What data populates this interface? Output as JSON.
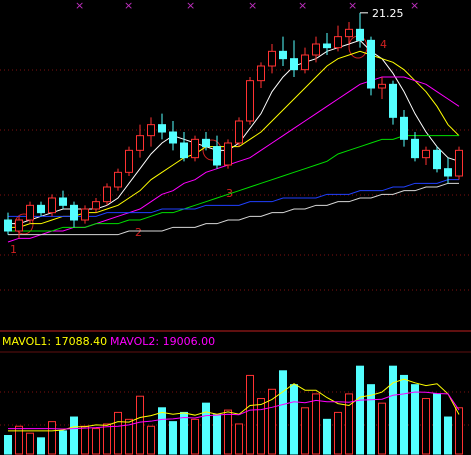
{
  "chart_data": [
    {
      "type": "candlestick",
      "open": [
        15.6,
        15.3,
        15.6,
        16.0,
        15.8,
        16.2,
        16.0,
        15.6,
        15.9,
        16.1,
        16.5,
        16.9,
        17.5,
        17.9,
        18.2,
        18.0,
        17.7,
        17.3,
        17.8,
        17.6,
        17.1,
        17.7,
        18.3,
        19.4,
        19.8,
        20.2,
        20.0,
        19.7,
        20.1,
        20.4,
        20.3,
        20.6,
        20.8,
        20.5,
        19.2,
        19.3,
        18.4,
        17.8,
        17.3,
        17.5,
        17.0,
        16.8
      ],
      "high": [
        15.8,
        15.7,
        16.1,
        16.1,
        16.3,
        16.4,
        16.1,
        16.0,
        16.2,
        16.6,
        17.0,
        17.6,
        18.2,
        18.4,
        18.5,
        18.3,
        18.0,
        17.9,
        18.0,
        17.9,
        17.8,
        18.4,
        19.5,
        19.9,
        20.4,
        20.6,
        20.5,
        20.3,
        20.6,
        20.7,
        20.9,
        21.0,
        21.25,
        20.6,
        19.5,
        19.4,
        18.6,
        18.0,
        17.6,
        17.6,
        17.3,
        17.6
      ],
      "low": [
        15.2,
        15.1,
        15.5,
        15.7,
        15.7,
        15.9,
        15.4,
        15.5,
        15.8,
        16.0,
        16.4,
        16.8,
        17.3,
        17.6,
        17.8,
        17.5,
        17.2,
        17.2,
        17.5,
        17.0,
        17.0,
        17.6,
        18.2,
        19.2,
        19.6,
        19.8,
        19.5,
        19.6,
        19.9,
        20.1,
        20.2,
        20.4,
        20.3,
        19.0,
        18.9,
        18.2,
        17.6,
        17.2,
        17.1,
        16.9,
        16.6,
        16.7
      ],
      "close": [
        15.3,
        15.6,
        16.0,
        15.8,
        16.2,
        16.0,
        15.6,
        15.9,
        16.1,
        16.5,
        16.9,
        17.5,
        17.9,
        18.2,
        18.0,
        17.7,
        17.3,
        17.8,
        17.6,
        17.1,
        17.7,
        18.3,
        19.4,
        19.8,
        20.2,
        20.0,
        19.7,
        20.1,
        20.4,
        20.3,
        20.6,
        20.8,
        20.5,
        19.2,
        19.3,
        18.4,
        17.8,
        17.3,
        17.5,
        17.0,
        16.8,
        17.5
      ],
      "ylim": [
        12.6,
        21.6
      ],
      "up_color": "#ff3232",
      "down_color": "#54ffff",
      "series": [
        {
          "color": "#ffffff",
          "values": [
            15.5,
            15.5,
            15.6,
            15.7,
            15.8,
            15.9,
            15.9,
            15.9,
            15.9,
            16.0,
            16.2,
            16.6,
            17.0,
            17.4,
            17.7,
            17.9,
            17.8,
            17.7,
            17.6,
            17.5,
            17.5,
            17.7,
            18.1,
            18.5,
            19.1,
            19.5,
            19.8,
            19.9,
            20.0,
            20.2,
            20.3,
            20.4,
            20.5,
            20.2,
            20.0,
            19.6,
            19.1,
            18.5,
            18.0,
            17.6,
            17.3,
            17.2
          ]
        },
        {
          "color": "#ffff00",
          "values": [
            15.4,
            15.4,
            15.5,
            15.5,
            15.6,
            15.7,
            15.7,
            15.8,
            15.8,
            15.9,
            16.0,
            16.2,
            16.4,
            16.7,
            16.9,
            17.1,
            17.3,
            17.4,
            17.6,
            17.6,
            17.6,
            17.6,
            17.8,
            18.0,
            18.3,
            18.6,
            18.9,
            19.2,
            19.5,
            19.8,
            20.0,
            20.1,
            20.2,
            20.1,
            20.0,
            19.9,
            19.7,
            19.4,
            19.1,
            18.7,
            18.2,
            17.9
          ]
        },
        {
          "color": "#ff00ff",
          "values": [
            15.0,
            15.1,
            15.1,
            15.2,
            15.3,
            15.3,
            15.4,
            15.4,
            15.5,
            15.6,
            15.7,
            15.8,
            15.9,
            16.1,
            16.3,
            16.4,
            16.6,
            16.7,
            16.9,
            17.0,
            17.1,
            17.2,
            17.3,
            17.5,
            17.7,
            17.9,
            18.1,
            18.3,
            18.5,
            18.7,
            18.9,
            19.1,
            19.3,
            19.4,
            19.5,
            19.5,
            19.5,
            19.4,
            19.3,
            19.1,
            18.9,
            18.7
          ]
        },
        {
          "color": "#00e000",
          "values": [
            15.3,
            15.3,
            15.3,
            15.3,
            15.3,
            15.4,
            15.4,
            15.4,
            15.5,
            15.5,
            15.5,
            15.6,
            15.6,
            15.7,
            15.8,
            15.8,
            15.9,
            16.0,
            16.1,
            16.2,
            16.3,
            16.4,
            16.5,
            16.6,
            16.7,
            16.8,
            16.9,
            17.0,
            17.1,
            17.2,
            17.4,
            17.5,
            17.6,
            17.7,
            17.8,
            17.8,
            17.9,
            17.9,
            17.9,
            17.9,
            17.9,
            17.9
          ]
        },
        {
          "color": "#2040ff",
          "values": [
            15.7,
            15.7,
            15.7,
            15.7,
            15.7,
            15.7,
            15.7,
            15.7,
            15.7,
            15.8,
            15.8,
            15.8,
            15.8,
            15.8,
            15.9,
            15.9,
            15.9,
            15.9,
            16.0,
            16.0,
            16.0,
            16.0,
            16.1,
            16.1,
            16.1,
            16.2,
            16.2,
            16.2,
            16.2,
            16.3,
            16.3,
            16.3,
            16.4,
            16.4,
            16.4,
            16.5,
            16.5,
            16.6,
            16.6,
            16.6,
            16.7,
            16.7
          ]
        },
        {
          "color": "#d8d8d8",
          "values": [
            15.2,
            15.2,
            15.2,
            15.2,
            15.2,
            15.2,
            15.2,
            15.2,
            15.2,
            15.2,
            15.2,
            15.3,
            15.3,
            15.3,
            15.3,
            15.4,
            15.4,
            15.4,
            15.5,
            15.5,
            15.6,
            15.6,
            15.7,
            15.7,
            15.8,
            15.8,
            15.9,
            15.9,
            16.0,
            16.0,
            16.1,
            16.1,
            16.2,
            16.2,
            16.3,
            16.3,
            16.4,
            16.4,
            16.5,
            16.5,
            16.6,
            16.6
          ]
        }
      ],
      "annotations": [
        "1",
        "2",
        "3",
        "4"
      ]
    },
    {
      "type": "volume",
      "values": [
        8000,
        12000,
        9000,
        7000,
        14000,
        10000,
        16000,
        12000,
        11000,
        13000,
        18000,
        15000,
        25000,
        12000,
        20000,
        14000,
        18000,
        15000,
        22000,
        17000,
        19000,
        13000,
        34000,
        24000,
        28000,
        36000,
        30000,
        20000,
        26000,
        15000,
        18000,
        26000,
        38000,
        30000,
        22000,
        38000,
        34000,
        30000,
        24000,
        26000,
        16000,
        20000
      ],
      "ylim": [
        0,
        45000
      ],
      "series": [
        {
          "name": "MAVOL1: 17088.40",
          "color": "#ffff00",
          "values": [
            10000,
            10000,
            10000,
            10000,
            10000,
            10400,
            11800,
            11800,
            12600,
            12400,
            14000,
            13800,
            15800,
            16600,
            18000,
            17200,
            17800,
            16800,
            18200,
            17200,
            18200,
            17200,
            21000,
            21400,
            23600,
            27000,
            30400,
            27600,
            27600,
            24400,
            21800,
            21000,
            24600,
            25400,
            26800,
            30800,
            32400,
            30800,
            29600,
            30400,
            26000,
            17088.4
          ]
        },
        {
          "name": "MAVOL2: 19006.00",
          "color": "#ff00ff",
          "values": [
            11000,
            11000,
            11000,
            11000,
            11000,
            10800,
            11000,
            11200,
            11400,
            11800,
            12000,
            12600,
            13800,
            14200,
            15000,
            15200,
            15800,
            15600,
            16600,
            16800,
            17200,
            17000,
            19000,
            19200,
            20200,
            21400,
            22600,
            22200,
            23200,
            22600,
            22600,
            22400,
            23300,
            23500,
            23700,
            25400,
            26000,
            26800,
            26700,
            26200,
            26000,
            19006
          ]
        }
      ]
    }
  ]
}
